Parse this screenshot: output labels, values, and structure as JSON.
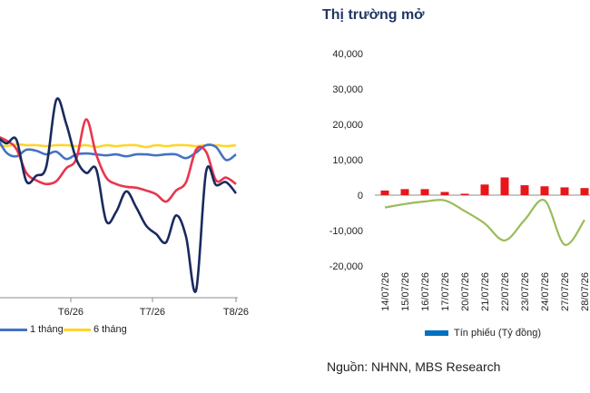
{
  "left_legend": [
    {
      "label": "1 tháng",
      "color": "#4472c4"
    },
    {
      "label": "6 tháng",
      "color": "#ffd42a"
    }
  ],
  "right_title": "Thị trường mở",
  "right_legend": {
    "label": "Tín phiếu (Tỷ đồng)",
    "color": "#0070c0"
  },
  "source": "Nguồn: NHNN, MBS Research",
  "chart_data": [
    {
      "type": "line",
      "xlabel": "",
      "ylabel": "",
      "x_ticks": [
        "T6/26",
        "T7/26",
        "T8/26"
      ],
      "series": [
        {
          "name": "1 tháng",
          "color": "#4472c4",
          "values": [
            0.0,
            1.8,
            2.2,
            1.5,
            1.6,
            2.0,
            1.7,
            2.5,
            2.0,
            1.9,
            2.0,
            2.1,
            2.0,
            2.2,
            2.0,
            2.0,
            2.1,
            2.0,
            2.0,
            2.4,
            1.8,
            1.0,
            1.2,
            2.6,
            2.0
          ]
        },
        {
          "name": "6 tháng",
          "color": "#ffd42a",
          "values": [
            1.0,
            1.1,
            0.9,
            1.0,
            1.0,
            1.1,
            1.0,
            1.0,
            1.1,
            1.0,
            1.2,
            1.0,
            1.1,
            1.0,
            1.0,
            1.2,
            1.0,
            1.1,
            1.0,
            1.0,
            1.1,
            1.0,
            1.0,
            1.1,
            1.0
          ]
        },
        {
          "name": "",
          "color": "#e8364d",
          "values": [
            0.0,
            0.5,
            1.4,
            4.0,
            4.8,
            5.2,
            4.9,
            3.5,
            2.5,
            -1.8,
            2.0,
            4.5,
            5.2,
            5.5,
            5.6,
            5.9,
            6.3,
            7.1,
            5.9,
            5.0,
            1.5,
            1.7,
            4.8,
            4.5,
            5.2
          ]
        },
        {
          "name": "",
          "color": "#1a2a5e",
          "values": [
            0.0,
            0.8,
            0.4,
            4.9,
            4.3,
            3.3,
            -3.9,
            -1.3,
            2.5,
            4.0,
            3.6,
            9.2,
            8.2,
            6.0,
            7.7,
            9.7,
            10.6,
            11.5,
            8.6,
            10.9,
            16.7,
            3.9,
            5.3,
            5.0,
            6.2
          ]
        }
      ]
    },
    {
      "type": "bar",
      "title": "Thị trường mở",
      "xlabel": "",
      "ylabel": "",
      "ylim": [
        -20000,
        40000
      ],
      "y_ticks": [
        -20000,
        -10000,
        0,
        10000,
        20000,
        30000,
        40000
      ],
      "categories": [
        "14/07/26",
        "15/07/26",
        "16/07/26",
        "17/07/26",
        "20/07/26",
        "21/07/26",
        "22/07/26",
        "23/07/26",
        "24/07/26",
        "27/07/26",
        "28/07/26"
      ],
      "series": [
        {
          "name": "",
          "type": "bar",
          "color": "#e8161b",
          "values": [
            1300,
            1700,
            1700,
            900,
            400,
            3000,
            5000,
            2800,
            2500,
            2200,
            2000
          ]
        },
        {
          "name": "",
          "type": "line",
          "color": "#9bbb59",
          "values": [
            -3500,
            -2500,
            -1800,
            -1500,
            -4500,
            -8000,
            -12800,
            -7000,
            -1500,
            -14000,
            -7000
          ]
        },
        {
          "name": "Tín phiếu (Tỷ đồng)",
          "type": "bar",
          "color": "#0070c0",
          "values": [
            0,
            0,
            0,
            0,
            0,
            0,
            0,
            0,
            0,
            0,
            0
          ]
        }
      ]
    }
  ]
}
